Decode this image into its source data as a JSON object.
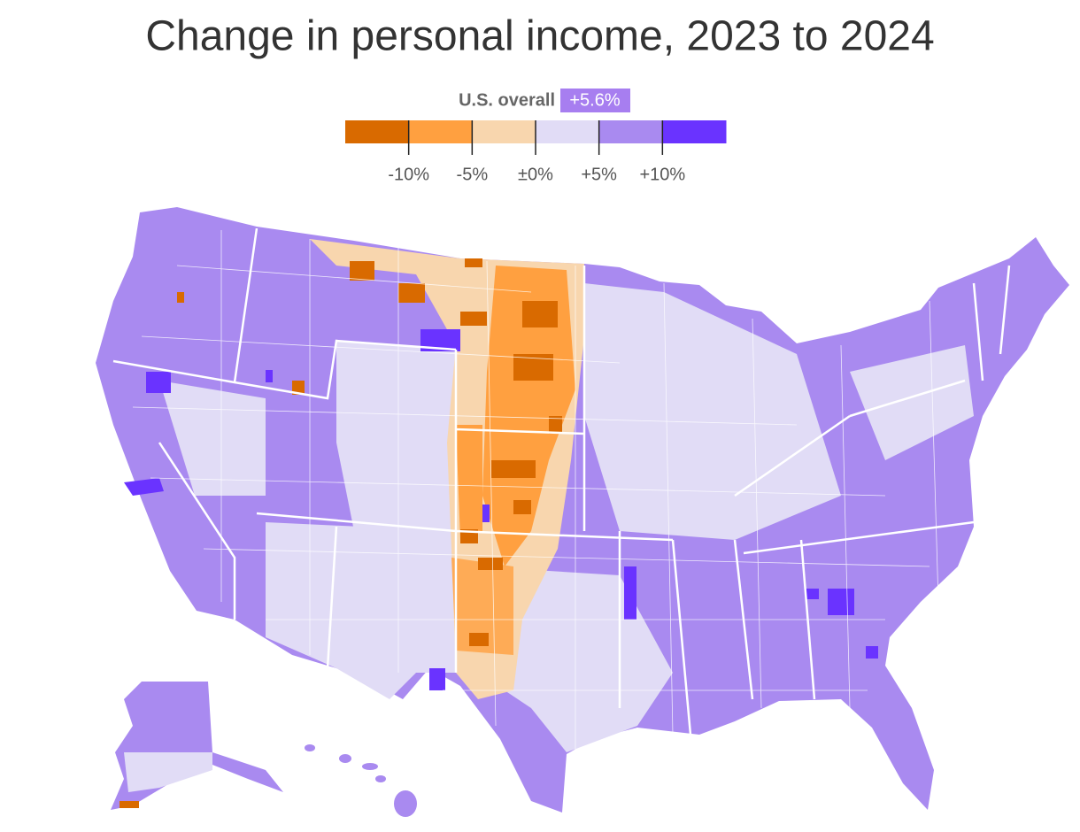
{
  "header": {
    "title": "Change in personal income, 2023 to 2024"
  },
  "legend": {
    "overall_label": "U.S. overall",
    "overall_value": "+5.6%",
    "colors": [
      "#d96a00",
      "#ffa040",
      "#f8d6ae",
      "#e1dcf6",
      "#a98af0",
      "#6a33ff"
    ],
    "range": [
      -15,
      15
    ],
    "ticks": [
      {
        "value": -10,
        "label": "-10%"
      },
      {
        "value": -5,
        "label": "-5%"
      },
      {
        "value": 0,
        "label": "±0%"
      },
      {
        "value": 5,
        "label": "+5%"
      },
      {
        "value": 10,
        "label": "+10%"
      }
    ]
  }
}
